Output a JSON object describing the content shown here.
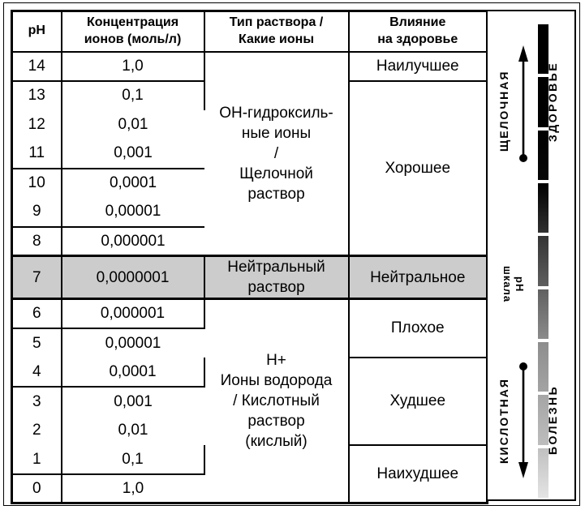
{
  "table": {
    "headers": {
      "ph": "рН",
      "concentration": "Концентрация\nионов (моль/л)",
      "solution": "Тип раствора /\nКакие ионы",
      "health": "Влияние\nна здоровье"
    },
    "rows": [
      {
        "ph": "14",
        "conc": "1,0"
      },
      {
        "ph": "13",
        "conc": "0,1"
      },
      {
        "ph": "12",
        "conc": "0,01"
      },
      {
        "ph": "11",
        "conc": "0,001"
      },
      {
        "ph": "10",
        "conc": "0,0001"
      },
      {
        "ph": "9",
        "conc": "0,00001"
      },
      {
        "ph": "8",
        "conc": "0,000001"
      },
      {
        "ph": "7",
        "conc": "0,0000001"
      },
      {
        "ph": "6",
        "conc": "0,000001"
      },
      {
        "ph": "5",
        "conc": "0,00001"
      },
      {
        "ph": "4",
        "conc": "0,0001"
      },
      {
        "ph": "3",
        "conc": "0,001"
      },
      {
        "ph": "2",
        "conc": "0,01"
      },
      {
        "ph": "1",
        "conc": "0,1"
      },
      {
        "ph": "0",
        "conc": "1,0"
      }
    ],
    "solution_types": {
      "alkaline": "ОН-гидроксиль-\nные ионы\n/\nЩелочной\nраствор",
      "neutral": "Нейтральный\nраствор",
      "acidic": "Н+\nИоны водорода\n/ Кислотный\nраствор\n(кислый)"
    },
    "health_effects": {
      "best": "Наилучшее",
      "good": "Хорошее",
      "neutral": "Нейтральное",
      "bad": "Плохое",
      "worse": "Худшее",
      "worst": "Наихудшее"
    }
  },
  "scale_panel": {
    "alkaline_label": "ЩЕЛОЧНАЯ",
    "health_label": "ЗДОРОВЬЕ",
    "scale_label": "шкала\nрН",
    "acidic_label": "КИСЛОТНАЯ",
    "disease_label": "БОЛЕЗНЬ",
    "bar_segments": [
      {
        "top": "#000000",
        "bottom": "#000000"
      },
      {
        "top": "#000000",
        "bottom": "#000000"
      },
      {
        "top": "#000000",
        "bottom": "#070707"
      },
      {
        "top": "#000000",
        "bottom": "#303030"
      },
      {
        "top": "#343434",
        "bottom": "#5e5e5e"
      },
      {
        "top": "#606060",
        "bottom": "#8b8b8b"
      },
      {
        "top": "#8d8d8d",
        "bottom": "#a3a3a3"
      },
      {
        "top": "#a5a5a5",
        "bottom": "#bdbdbd"
      },
      {
        "top": "#c0c0c0",
        "bottom": "#e4e4e4"
      }
    ]
  },
  "colors": {
    "neutral_row_bg": "#cccccc",
    "line": "#000000"
  }
}
